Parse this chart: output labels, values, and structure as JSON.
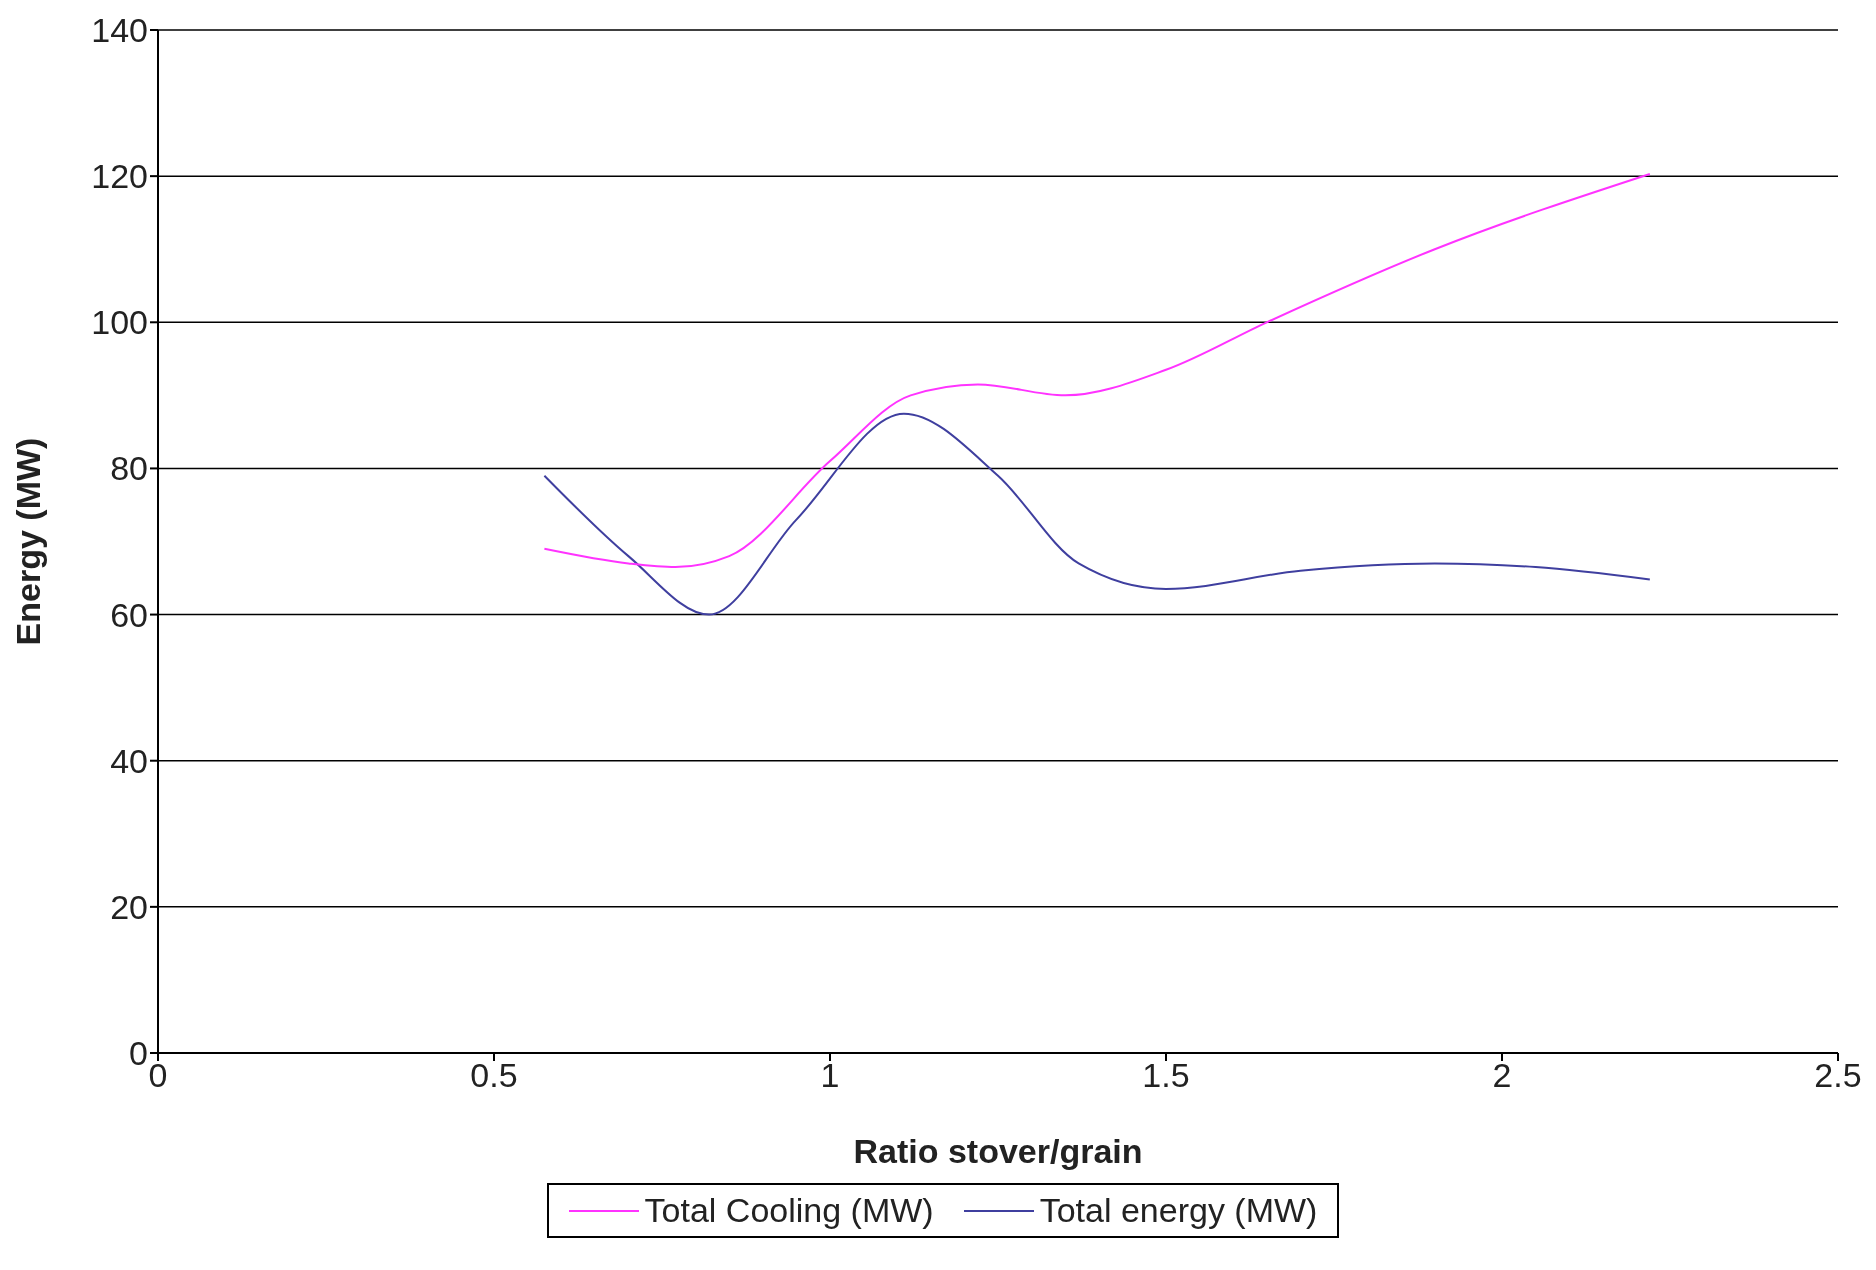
{
  "chart_data": {
    "type": "line",
    "xlabel": "Ratio stover/grain",
    "ylabel": "Energy (MW)",
    "xlim": [
      0,
      2.5
    ],
    "xticks": [
      0,
      0.5,
      1,
      1.5,
      2,
      2.5
    ],
    "ylim": [
      0,
      140
    ],
    "yticks": [
      0,
      20,
      40,
      60,
      80,
      100,
      120,
      140
    ],
    "grid": "y",
    "legend": "bottom",
    "marker": "none",
    "line_style": "solid",
    "series": [
      {
        "name": "Total energy (MW)",
        "color": "#3f3f9f",
        "x": [
          0.575,
          0.7,
          0.82,
          0.95,
          1.11,
          1.25,
          1.37,
          1.5,
          1.7,
          1.9,
          2.05,
          2.22
        ],
        "values": [
          79,
          68,
          60,
          73,
          87.5,
          79,
          67,
          63.5,
          66,
          67,
          66.5,
          64.8
        ]
      },
      {
        "name": "Total Cooling (MW)",
        "color": "#ff33ff",
        "x": [
          0.575,
          0.7,
          0.77,
          0.85,
          1.0,
          1.12,
          1.22,
          1.35,
          1.5,
          1.65,
          1.9,
          2.22
        ],
        "values": [
          69,
          67,
          66.5,
          68,
          81,
          90,
          91.5,
          90,
          93.5,
          100,
          110,
          120.3
        ]
      }
    ]
  }
}
